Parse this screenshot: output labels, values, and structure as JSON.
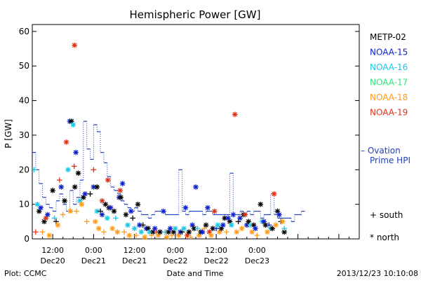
{
  "chart_data": {
    "type": "scatter",
    "title": "Hemispheric Power [GW]",
    "ylabel": "P [GW]",
    "xlabel": "Date and Time",
    "ylim": [
      0,
      62
    ],
    "xlim_hours": [
      -6,
      90
    ],
    "yticks": [
      0,
      10,
      20,
      30,
      40,
      50,
      60
    ],
    "xticks": [
      {
        "h": 0,
        "time": "12:00",
        "date": "Dec20"
      },
      {
        "h": 12,
        "time": "0:00",
        "date": "Dec21"
      },
      {
        "h": 24,
        "time": "12:00",
        "date": "Dec21"
      },
      {
        "h": 36,
        "time": "0:00",
        "date": "Dec22"
      },
      {
        "h": 48,
        "time": "12:00",
        "date": "Dec22"
      },
      {
        "h": 60,
        "time": "0:00",
        "date": "Dec23"
      }
    ],
    "legend": {
      "position": "right",
      "entries": [
        {
          "name": "METP-02",
          "color": "#000000"
        },
        {
          "name": "NOAA-15",
          "color": "#0a1fd0"
        },
        {
          "name": "NOAA-16",
          "color": "#19c8e6"
        },
        {
          "name": "NOAA-17",
          "color": "#2fe67a"
        },
        {
          "name": "NOAA-18",
          "color": "#ff9a1a"
        },
        {
          "name": "NOAA-19",
          "color": "#e03018"
        }
      ],
      "ovation": "– Ovation\nPrime HPI",
      "ovation_color": "#1f3fbf",
      "south": "+ south",
      "north": "* north"
    },
    "footer_left": "Plot: CCMC",
    "footer_right": "2013/12/23 10:10:08",
    "ovation_series": [
      [
        -6,
        25
      ],
      [
        -5,
        20
      ],
      [
        -4,
        16
      ],
      [
        -3,
        12
      ],
      [
        -2,
        10
      ],
      [
        -1,
        9
      ],
      [
        0,
        8
      ],
      [
        1,
        11
      ],
      [
        2,
        13
      ],
      [
        3,
        10
      ],
      [
        4,
        8
      ],
      [
        5,
        14
      ],
      [
        6,
        10
      ],
      [
        7,
        12
      ],
      [
        8,
        17
      ],
      [
        9,
        34
      ],
      [
        10,
        26
      ],
      [
        11,
        23
      ],
      [
        12,
        33
      ],
      [
        13,
        31
      ],
      [
        14,
        25
      ],
      [
        15,
        22
      ],
      [
        16,
        18
      ],
      [
        17,
        15
      ],
      [
        18,
        14
      ],
      [
        19,
        13
      ],
      [
        20,
        11
      ],
      [
        21,
        10
      ],
      [
        22,
        9
      ],
      [
        23,
        8
      ],
      [
        24,
        9
      ],
      [
        25,
        8
      ],
      [
        26,
        7
      ],
      [
        27,
        7
      ],
      [
        28,
        6
      ],
      [
        29,
        7
      ],
      [
        30,
        8
      ],
      [
        31,
        8
      ],
      [
        32,
        8
      ],
      [
        33,
        7
      ],
      [
        34,
        7
      ],
      [
        35,
        7
      ],
      [
        36,
        7
      ],
      [
        37,
        20
      ],
      [
        38,
        8
      ],
      [
        39,
        7
      ],
      [
        40,
        8
      ],
      [
        41,
        8
      ],
      [
        42,
        8
      ],
      [
        43,
        8
      ],
      [
        44,
        7
      ],
      [
        45,
        8
      ],
      [
        46,
        8
      ],
      [
        47,
        7
      ],
      [
        48,
        7
      ],
      [
        49,
        7
      ],
      [
        50,
        7
      ],
      [
        51,
        7
      ],
      [
        52,
        19
      ],
      [
        53,
        7
      ],
      [
        54,
        7
      ],
      [
        55,
        8
      ],
      [
        56,
        7
      ],
      [
        57,
        8
      ],
      [
        58,
        7
      ],
      [
        59,
        8
      ],
      [
        60,
        8
      ],
      [
        61,
        6
      ],
      [
        62,
        7
      ],
      [
        63,
        7
      ],
      [
        64,
        13
      ],
      [
        65,
        7
      ],
      [
        66,
        6
      ],
      [
        67,
        6
      ],
      [
        68,
        6
      ],
      [
        69,
        6
      ],
      [
        70,
        5
      ],
      [
        71,
        7
      ],
      [
        72,
        7
      ],
      [
        73,
        8
      ]
    ],
    "points": [
      {
        "sat": "NOAA-19",
        "h": -5,
        "y": 2,
        "m": "+"
      },
      {
        "sat": "NOAA-16",
        "h": -5.5,
        "y": 20,
        "m": "+"
      },
      {
        "sat": "NOAA-16",
        "h": -4.5,
        "y": 10,
        "m": "*"
      },
      {
        "sat": "METP-02",
        "h": -4,
        "y": 8,
        "m": "*"
      },
      {
        "sat": "NOAA-15",
        "h": -3.5,
        "y": 9,
        "m": "*"
      },
      {
        "sat": "NOAA-18",
        "h": -3,
        "y": 2,
        "m": "+"
      },
      {
        "sat": "METP-02",
        "h": -2.5,
        "y": 5,
        "m": "*"
      },
      {
        "sat": "NOAA-19",
        "h": -2,
        "y": 6,
        "m": "*"
      },
      {
        "sat": "NOAA-15",
        "h": -1.5,
        "y": 7,
        "m": "*"
      },
      {
        "sat": "NOAA-18",
        "h": -1,
        "y": 1,
        "m": "*"
      },
      {
        "sat": "METP-02",
        "h": 0,
        "y": 14,
        "m": "*"
      },
      {
        "sat": "NOAA-16",
        "h": 0.5,
        "y": 6,
        "m": "+"
      },
      {
        "sat": "METP-02",
        "h": 1,
        "y": 5,
        "m": "+"
      },
      {
        "sat": "NOAA-18",
        "h": 1.5,
        "y": 4,
        "m": "*"
      },
      {
        "sat": "NOAA-15",
        "h": 2.5,
        "y": 15,
        "m": "*"
      },
      {
        "sat": "NOAA-19",
        "h": 2,
        "y": 17,
        "m": "+"
      },
      {
        "sat": "NOAA-18",
        "h": 3,
        "y": 7,
        "m": "+"
      },
      {
        "sat": "METP-02",
        "h": 3.5,
        "y": 11,
        "m": "*"
      },
      {
        "sat": "NOAA-19",
        "h": 4,
        "y": 28,
        "m": "*"
      },
      {
        "sat": "NOAA-16",
        "h": 4.5,
        "y": 20,
        "m": "*"
      },
      {
        "sat": "NOAA-15",
        "h": 5,
        "y": 34,
        "m": "*"
      },
      {
        "sat": "METP-02",
        "h": 5.5,
        "y": 34,
        "m": "*"
      },
      {
        "sat": "NOAA-18",
        "h": 5.2,
        "y": 8,
        "m": "*"
      },
      {
        "sat": "NOAA-16",
        "h": 6,
        "y": 33,
        "m": "*"
      },
      {
        "sat": "NOAA-19",
        "h": 6.3,
        "y": 21,
        "m": "+"
      },
      {
        "sat": "METP-02",
        "h": 6.5,
        "y": 15,
        "m": "*"
      },
      {
        "sat": "NOAA-15",
        "h": 6.8,
        "y": 25,
        "m": "*"
      },
      {
        "sat": "NOAA-19",
        "h": 6.4,
        "y": 56,
        "m": "*"
      },
      {
        "sat": "NOAA-18",
        "h": 7,
        "y": 8,
        "m": "+"
      },
      {
        "sat": "METP-02",
        "h": 7.5,
        "y": 19,
        "m": "*"
      },
      {
        "sat": "NOAA-16",
        "h": 8,
        "y": 11,
        "m": "*"
      },
      {
        "sat": "NOAA-18",
        "h": 8.5,
        "y": 10,
        "m": "*"
      },
      {
        "sat": "METP-02",
        "h": 9,
        "y": 12,
        "m": "*"
      },
      {
        "sat": "NOAA-15",
        "h": 9.5,
        "y": 13,
        "m": "*"
      },
      {
        "sat": "NOAA-18",
        "h": 10,
        "y": 5,
        "m": "+"
      },
      {
        "sat": "METP-02",
        "h": 11,
        "y": 13,
        "m": "+"
      },
      {
        "sat": "NOAA-15",
        "h": 12,
        "y": 15,
        "m": "*"
      },
      {
        "sat": "NOAA-19",
        "h": 12,
        "y": 20,
        "m": "+"
      },
      {
        "sat": "NOAA-18",
        "h": 12.5,
        "y": 5,
        "m": "*"
      },
      {
        "sat": "METP-02",
        "h": 13,
        "y": 15,
        "m": "*"
      },
      {
        "sat": "NOAA-16",
        "h": 13,
        "y": 8,
        "m": "*"
      },
      {
        "sat": "NOAA-18",
        "h": 13.5,
        "y": 3,
        "m": "*"
      },
      {
        "sat": "METP-02",
        "h": 14,
        "y": 8,
        "m": "+"
      },
      {
        "sat": "NOAA-15",
        "h": 14.5,
        "y": 7,
        "m": "*"
      },
      {
        "sat": "NOAA-19",
        "h": 14.5,
        "y": 11,
        "m": "*"
      },
      {
        "sat": "NOAA-18",
        "h": 15,
        "y": 2,
        "m": "+"
      },
      {
        "sat": "METP-02",
        "h": 15.5,
        "y": 10,
        "m": "*"
      },
      {
        "sat": "NOAA-16",
        "h": 16,
        "y": 6,
        "m": "*"
      },
      {
        "sat": "NOAA-19",
        "h": 16.2,
        "y": 17,
        "m": "*"
      },
      {
        "sat": "METP-02",
        "h": 16.5,
        "y": 9,
        "m": "*"
      },
      {
        "sat": "NOAA-15",
        "h": 17,
        "y": 9,
        "m": "*"
      },
      {
        "sat": "NOAA-18",
        "h": 17.5,
        "y": 3,
        "m": "*"
      },
      {
        "sat": "METP-02",
        "h": 18,
        "y": 8,
        "m": "*"
      },
      {
        "sat": "NOAA-16",
        "h": 18.5,
        "y": 6,
        "m": "+"
      },
      {
        "sat": "NOAA-18",
        "h": 19,
        "y": 2,
        "m": "*"
      },
      {
        "sat": "NOAA-15",
        "h": 19.5,
        "y": 12,
        "m": "*"
      },
      {
        "sat": "NOAA-19",
        "h": 19.8,
        "y": 14,
        "m": "*"
      },
      {
        "sat": "METP-02",
        "h": 20,
        "y": 12,
        "m": "*"
      },
      {
        "sat": "NOAA-15",
        "h": 20.5,
        "y": 16,
        "m": "*"
      },
      {
        "sat": "NOAA-18",
        "h": 21,
        "y": 2,
        "m": "+"
      },
      {
        "sat": "METP-02",
        "h": 21.5,
        "y": 7,
        "m": "*"
      },
      {
        "sat": "NOAA-16",
        "h": 22,
        "y": 4,
        "m": "*"
      },
      {
        "sat": "NOAA-18",
        "h": 22.5,
        "y": 1,
        "m": "*"
      },
      {
        "sat": "NOAA-15",
        "h": 23,
        "y": 8,
        "m": "*"
      },
      {
        "sat": "METP-02",
        "h": 23.5,
        "y": 6,
        "m": "+"
      },
      {
        "sat": "NOAA-16",
        "h": 24,
        "y": 3,
        "m": "*"
      },
      {
        "sat": "NOAA-18",
        "h": 24.5,
        "y": 1,
        "m": "+"
      },
      {
        "sat": "METP-02",
        "h": 25,
        "y": 10,
        "m": "*"
      },
      {
        "sat": "NOAA-15",
        "h": 25.5,
        "y": 4,
        "m": "*"
      },
      {
        "sat": "NOAA-16",
        "h": 26,
        "y": 2,
        "m": "*"
      },
      {
        "sat": "METP-02",
        "h": 26.5,
        "y": 4,
        "m": "+"
      },
      {
        "sat": "NOAA-18",
        "h": 27,
        "y": 0.5,
        "m": "*"
      },
      {
        "sat": "NOAA-15",
        "h": 27.5,
        "y": 3,
        "m": "*"
      },
      {
        "sat": "METP-02",
        "h": 28,
        "y": 3,
        "m": "*"
      },
      {
        "sat": "NOAA-16",
        "h": 28.5,
        "y": 2,
        "m": "*"
      },
      {
        "sat": "NOAA-18",
        "h": 29,
        "y": 1,
        "m": "+"
      },
      {
        "sat": "METP-02",
        "h": 29.5,
        "y": 2,
        "m": "*"
      },
      {
        "sat": "NOAA-15",
        "h": 30,
        "y": 3,
        "m": "*"
      },
      {
        "sat": "NOAA-19",
        "h": 30.5,
        "y": 2,
        "m": "+"
      },
      {
        "sat": "NOAA-18",
        "h": 31,
        "y": 1,
        "m": "*"
      },
      {
        "sat": "METP-02",
        "h": 31.5,
        "y": 2,
        "m": "*"
      },
      {
        "sat": "NOAA-15",
        "h": 32.5,
        "y": 8,
        "m": "*"
      },
      {
        "sat": "NOAA-16",
        "h": 33,
        "y": 2,
        "m": "+"
      },
      {
        "sat": "NOAA-18",
        "h": 33.5,
        "y": 0.5,
        "m": "*"
      },
      {
        "sat": "METP-02",
        "h": 34,
        "y": 2,
        "m": "*"
      },
      {
        "sat": "NOAA-15",
        "h": 34.5,
        "y": 3,
        "m": "*"
      },
      {
        "sat": "NOAA-18",
        "h": 35,
        "y": 1,
        "m": "+"
      },
      {
        "sat": "METP-02",
        "h": 35.5,
        "y": 2,
        "m": "*"
      },
      {
        "sat": "NOAA-16",
        "h": 36,
        "y": 3,
        "m": "*"
      },
      {
        "sat": "NOAA-18",
        "h": 37,
        "y": 1,
        "m": "*"
      },
      {
        "sat": "NOAA-15",
        "h": 37.5,
        "y": 2,
        "m": "*"
      },
      {
        "sat": "METP-02",
        "h": 38,
        "y": 2,
        "m": "+"
      },
      {
        "sat": "NOAA-16",
        "h": 38.5,
        "y": 3,
        "m": "*"
      },
      {
        "sat": "NOAA-15",
        "h": 39,
        "y": 9,
        "m": "*"
      },
      {
        "sat": "NOAA-19",
        "h": 39.5,
        "y": 1,
        "m": "*"
      },
      {
        "sat": "METP-02",
        "h": 40,
        "y": 2,
        "m": "*"
      },
      {
        "sat": "NOAA-18",
        "h": 40.5,
        "y": 0.5,
        "m": "+"
      },
      {
        "sat": "NOAA-15",
        "h": 41,
        "y": 4,
        "m": "*"
      },
      {
        "sat": "METP-02",
        "h": 41.5,
        "y": 3,
        "m": "*"
      },
      {
        "sat": "NOAA-15",
        "h": 42,
        "y": 15,
        "m": "*"
      },
      {
        "sat": "NOAA-16",
        "h": 42.5,
        "y": 3,
        "m": "+"
      },
      {
        "sat": "NOAA-18",
        "h": 43,
        "y": 1,
        "m": "*"
      },
      {
        "sat": "METP-02",
        "h": 43.5,
        "y": 2,
        "m": "*"
      },
      {
        "sat": "NOAA-15",
        "h": 44,
        "y": 2,
        "m": "*"
      },
      {
        "sat": "NOAA-18",
        "h": 44.5,
        "y": 3,
        "m": "+"
      },
      {
        "sat": "METP-02",
        "h": 45,
        "y": 4,
        "m": "*"
      },
      {
        "sat": "NOAA-15",
        "h": 45.5,
        "y": 9,
        "m": "*"
      },
      {
        "sat": "NOAA-19",
        "h": 46,
        "y": 2,
        "m": "*"
      },
      {
        "sat": "NOAA-18",
        "h": 46.5,
        "y": 1,
        "m": "*"
      },
      {
        "sat": "METP-02",
        "h": 47,
        "y": 3,
        "m": "*"
      },
      {
        "sat": "NOAA-19",
        "h": 47.5,
        "y": 8,
        "m": "*"
      },
      {
        "sat": "NOAA-15",
        "h": 48,
        "y": 3,
        "m": "+"
      },
      {
        "sat": "NOAA-16",
        "h": 48.5,
        "y": 4,
        "m": "*"
      },
      {
        "sat": "NOAA-18",
        "h": 49,
        "y": 2,
        "m": "*"
      },
      {
        "sat": "METP-02",
        "h": 49.5,
        "y": 3,
        "m": "*"
      },
      {
        "sat": "NOAA-15",
        "h": 50,
        "y": 4,
        "m": "*"
      },
      {
        "sat": "METP-02",
        "h": 50.5,
        "y": 6,
        "m": "*"
      },
      {
        "sat": "NOAA-18",
        "h": 51,
        "y": 2,
        "m": "+"
      },
      {
        "sat": "NOAA-15",
        "h": 51.5,
        "y": 6,
        "m": "*"
      },
      {
        "sat": "METP-02",
        "h": 52,
        "y": 5,
        "m": "*"
      },
      {
        "sat": "NOAA-16",
        "h": 52.5,
        "y": 4,
        "m": "*"
      },
      {
        "sat": "NOAA-15",
        "h": 53,
        "y": 7,
        "m": "*"
      },
      {
        "sat": "NOAA-19",
        "h": 53.5,
        "y": 36,
        "m": "*"
      },
      {
        "sat": "NOAA-18",
        "h": 54,
        "y": 2,
        "m": "*"
      },
      {
        "sat": "METP-02",
        "h": 54.5,
        "y": 5,
        "m": "+"
      },
      {
        "sat": "NOAA-15",
        "h": 55,
        "y": 6,
        "m": "*"
      },
      {
        "sat": "NOAA-18",
        "h": 55.5,
        "y": 3,
        "m": "*"
      },
      {
        "sat": "METP-02",
        "h": 56,
        "y": 7,
        "m": "*"
      },
      {
        "sat": "NOAA-19",
        "h": 56.5,
        "y": 7,
        "m": "*"
      },
      {
        "sat": "NOAA-15",
        "h": 57,
        "y": 4,
        "m": "*"
      },
      {
        "sat": "METP-02",
        "h": 57.5,
        "y": 5,
        "m": "*"
      },
      {
        "sat": "NOAA-16",
        "h": 58,
        "y": 4,
        "m": "+"
      },
      {
        "sat": "NOAA-18",
        "h": 58.5,
        "y": 2,
        "m": "*"
      },
      {
        "sat": "METP-02",
        "h": 59,
        "y": 4,
        "m": "*"
      },
      {
        "sat": "NOAA-15",
        "h": 59.5,
        "y": 3,
        "m": "*"
      },
      {
        "sat": "NOAA-18",
        "h": 60,
        "y": 1,
        "m": "+"
      },
      {
        "sat": "METP-02",
        "h": 61,
        "y": 10,
        "m": "*"
      },
      {
        "sat": "NOAA-16",
        "h": 61.5,
        "y": 5,
        "m": "*"
      },
      {
        "sat": "NOAA-15",
        "h": 62,
        "y": 5,
        "m": "*"
      },
      {
        "sat": "METP-02",
        "h": 62.5,
        "y": 4,
        "m": "*"
      },
      {
        "sat": "NOAA-18",
        "h": 63,
        "y": 2,
        "m": "*"
      },
      {
        "sat": "NOAA-15",
        "h": 63.5,
        "y": 4,
        "m": "+"
      },
      {
        "sat": "NOAA-16",
        "h": 64,
        "y": 3,
        "m": "*"
      },
      {
        "sat": "METP-02",
        "h": 64.5,
        "y": 3,
        "m": "*"
      },
      {
        "sat": "NOAA-19",
        "h": 65,
        "y": 13,
        "m": "*"
      },
      {
        "sat": "NOAA-18",
        "h": 65.5,
        "y": 4,
        "m": "*"
      },
      {
        "sat": "METP-02",
        "h": 66,
        "y": 8,
        "m": "*"
      },
      {
        "sat": "NOAA-15",
        "h": 66.5,
        "y": 7,
        "m": "*"
      },
      {
        "sat": "METP-02",
        "h": 67,
        "y": 5,
        "m": "+"
      },
      {
        "sat": "NOAA-18",
        "h": 67.5,
        "y": 5,
        "m": "*"
      },
      {
        "sat": "METP-02",
        "h": 68,
        "y": 2,
        "m": "*"
      },
      {
        "sat": "NOAA-16",
        "h": 68,
        "y": 3,
        "m": "+"
      }
    ]
  }
}
